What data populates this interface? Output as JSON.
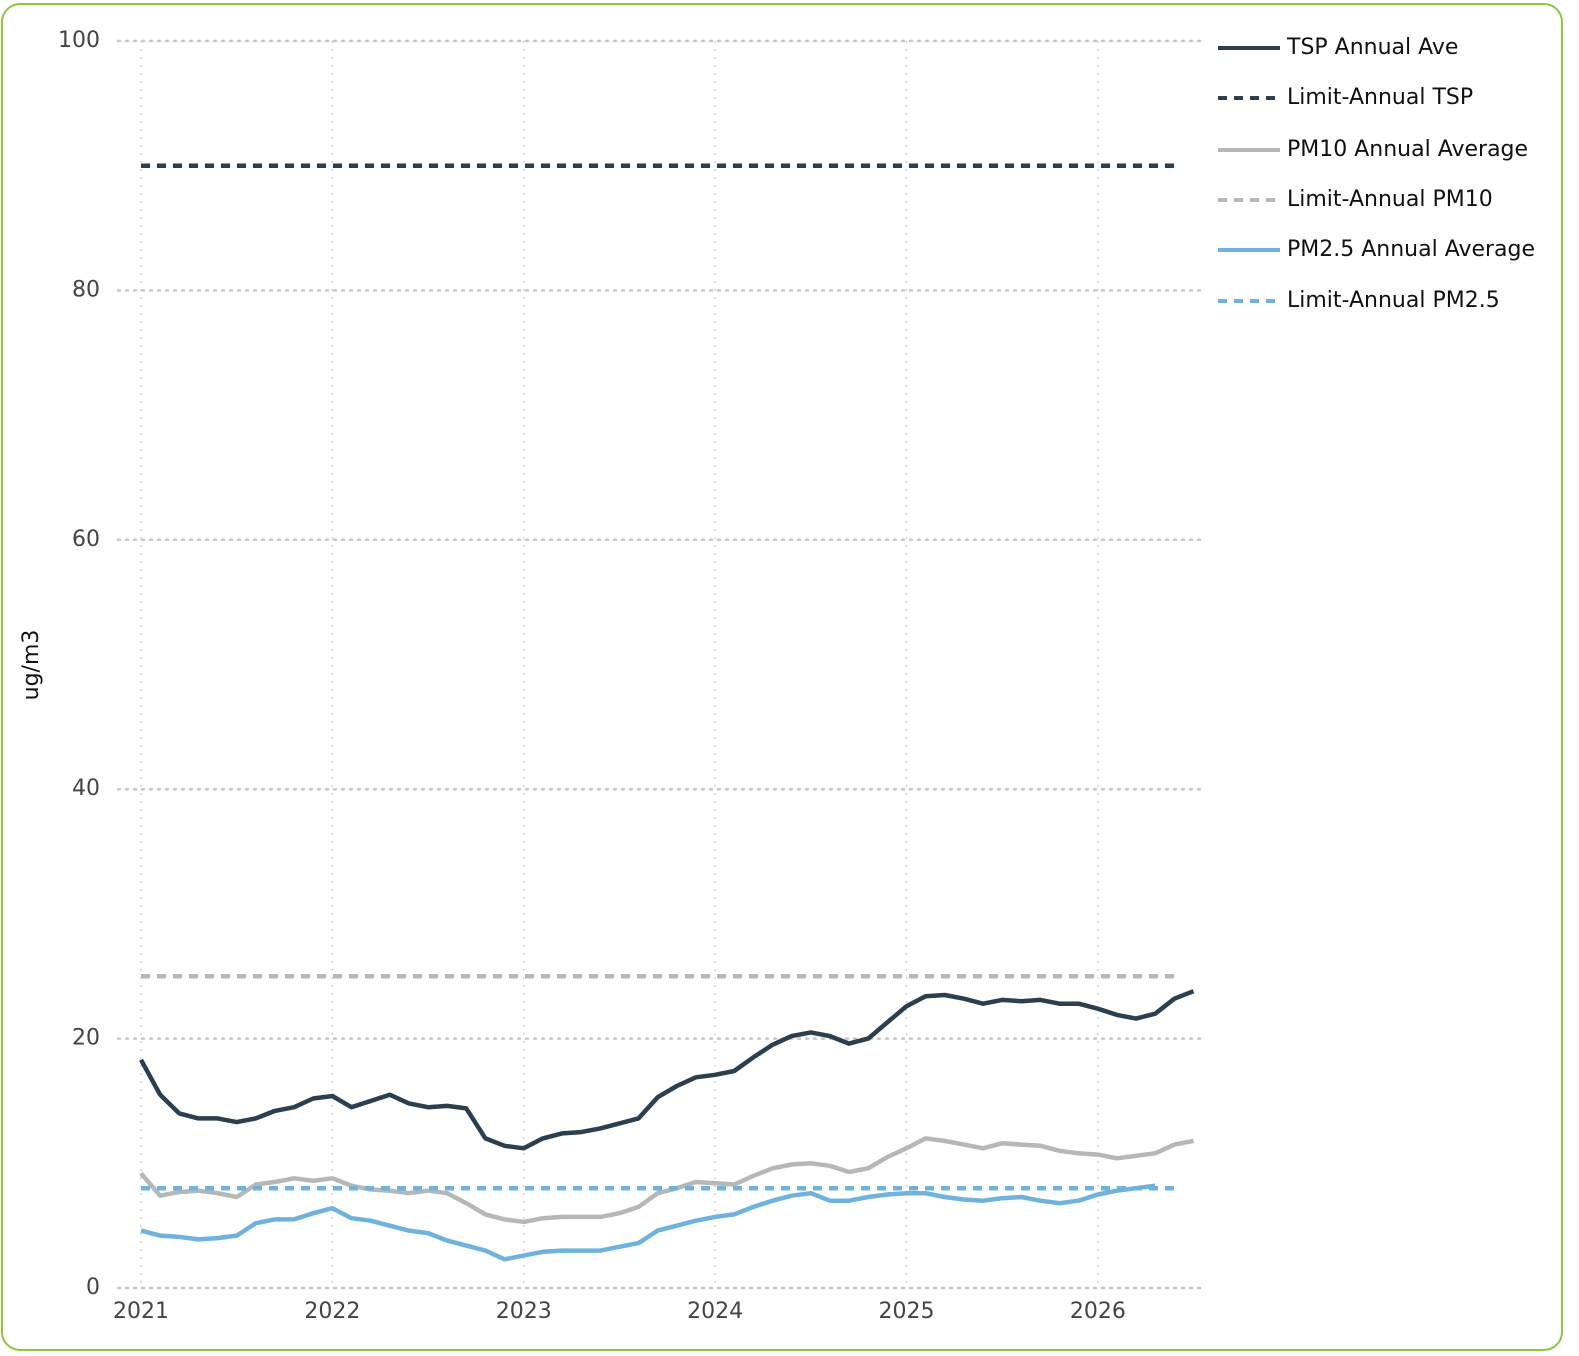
{
  "chart_data": {
    "type": "line",
    "y_label": "ug/m3",
    "x": [
      2021.0,
      2021.1,
      2021.2,
      2021.3,
      2021.4,
      2021.5,
      2021.6,
      2021.7,
      2021.8,
      2021.9,
      2022.0,
      2022.1,
      2022.2,
      2022.3,
      2022.4,
      2022.5,
      2022.6,
      2022.7,
      2022.8,
      2022.9,
      2023.0,
      2023.1,
      2023.2,
      2023.3,
      2023.4,
      2023.5,
      2023.6,
      2023.7,
      2023.8,
      2023.9,
      2024.0,
      2024.1,
      2024.2,
      2024.3,
      2024.4,
      2024.5,
      2024.6,
      2024.7,
      2024.8,
      2024.9,
      2025.0,
      2025.1,
      2025.2,
      2025.3,
      2025.4,
      2025.5,
      2025.6,
      2025.7,
      2025.8,
      2025.9,
      2026.0,
      2026.1,
      2026.2,
      2026.3,
      2026.4,
      2026.5
    ],
    "series": [
      {
        "name": "TSP Annual Ave",
        "color": "#2b3f4f",
        "dashed": false,
        "values": [
          18.3,
          15.5,
          14.0,
          13.6,
          13.6,
          13.3,
          13.6,
          14.2,
          14.5,
          15.2,
          15.4,
          14.5,
          15.0,
          15.5,
          14.8,
          14.5,
          14.6,
          14.4,
          12.0,
          11.4,
          11.2,
          12.0,
          12.4,
          12.5,
          12.8,
          13.2,
          13.6,
          15.3,
          16.2,
          16.9,
          17.1,
          17.4,
          18.5,
          19.5,
          20.2,
          20.5,
          20.2,
          19.6,
          20.0,
          21.3,
          22.6,
          23.4,
          23.5,
          23.2,
          22.8,
          23.1,
          23.0,
          23.1,
          22.8,
          22.8,
          22.4,
          21.9,
          21.6,
          22.0,
          23.2,
          23.8
        ]
      },
      {
        "name": "Limit-Annual TSP",
        "color": "#2b3f4f",
        "dashed": true,
        "values": [
          90,
          90,
          90,
          90,
          90,
          90,
          90,
          90,
          90,
          90,
          90,
          90,
          90,
          90,
          90,
          90,
          90,
          90,
          90,
          90,
          90,
          90,
          90,
          90,
          90,
          90,
          90,
          90,
          90,
          90,
          90,
          90,
          90,
          90,
          90,
          90,
          90,
          90,
          90,
          90,
          90,
          90,
          90,
          90,
          90,
          90,
          90,
          90,
          90,
          90,
          90,
          90,
          90,
          90,
          90,
          null
        ]
      },
      {
        "name": "PM10 Annual Average",
        "color": "#b7b7b7",
        "dashed": false,
        "values": [
          9.2,
          7.4,
          7.7,
          7.8,
          7.6,
          7.3,
          8.3,
          8.5,
          8.8,
          8.6,
          8.8,
          8.2,
          7.9,
          7.8,
          7.6,
          7.8,
          7.6,
          6.8,
          5.9,
          5.5,
          5.3,
          5.6,
          5.7,
          5.7,
          5.7,
          6.0,
          6.5,
          7.6,
          8.0,
          8.5,
          8.4,
          8.3,
          9.0,
          9.6,
          9.9,
          10.0,
          9.8,
          9.3,
          9.6,
          10.5,
          11.2,
          12.0,
          11.8,
          11.5,
          11.2,
          11.6,
          11.5,
          11.4,
          11.0,
          10.8,
          10.7,
          10.4,
          10.6,
          10.8,
          11.5,
          11.8
        ]
      },
      {
        "name": "Limit-Annual PM10",
        "color": "#b7b7b7",
        "dashed": true,
        "values": [
          25,
          25,
          25,
          25,
          25,
          25,
          25,
          25,
          25,
          25,
          25,
          25,
          25,
          25,
          25,
          25,
          25,
          25,
          25,
          25,
          25,
          25,
          25,
          25,
          25,
          25,
          25,
          25,
          25,
          25,
          25,
          25,
          25,
          25,
          25,
          25,
          25,
          25,
          25,
          25,
          25,
          25,
          25,
          25,
          25,
          25,
          25,
          25,
          25,
          25,
          25,
          25,
          25,
          25,
          25,
          null
        ]
      },
      {
        "name": "PM2.5 Annual Average",
        "color": "#6fb3dc",
        "dashed": false,
        "values": [
          4.6,
          4.2,
          4.1,
          3.9,
          4.0,
          4.2,
          5.2,
          5.5,
          5.5,
          6.0,
          6.4,
          5.6,
          5.4,
          5.0,
          4.6,
          4.4,
          3.8,
          3.4,
          3.0,
          2.3,
          2.6,
          2.9,
          3.0,
          3.0,
          3.0,
          3.3,
          3.6,
          4.6,
          5.0,
          5.4,
          5.7,
          5.9,
          6.5,
          7.0,
          7.4,
          7.6,
          7.0,
          7.0,
          7.3,
          7.5,
          7.6,
          7.6,
          7.3,
          7.1,
          7.0,
          7.2,
          7.3,
          7.0,
          6.8,
          7.0,
          7.5,
          7.8,
          8.0,
          8.2,
          null,
          null
        ]
      },
      {
        "name": "Limit-Annual PM2.5",
        "color": "#6fb3dc",
        "dashed": true,
        "values": [
          8,
          8,
          8,
          8,
          8,
          8,
          8,
          8,
          8,
          8,
          8,
          8,
          8,
          8,
          8,
          8,
          8,
          8,
          8,
          8,
          8,
          8,
          8,
          8,
          8,
          8,
          8,
          8,
          8,
          8,
          8,
          8,
          8,
          8,
          8,
          8,
          8,
          8,
          8,
          8,
          8,
          8,
          8,
          8,
          8,
          8,
          8,
          8,
          8,
          8,
          8,
          8,
          8,
          8,
          8,
          null
        ]
      }
    ],
    "xlim": [
      2020.88,
      2026.56
    ],
    "xticks": [
      2021,
      2022,
      2023,
      2024,
      2025,
      2026
    ],
    "ylim": [
      0,
      100
    ],
    "yticks": [
      0,
      20,
      40,
      60,
      80,
      100
    ],
    "grid": true,
    "legend": "right"
  }
}
